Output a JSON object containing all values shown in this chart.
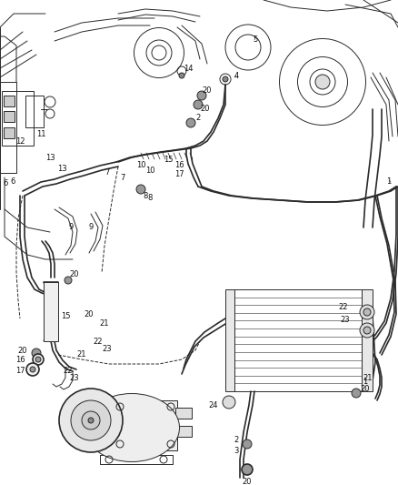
{
  "bg_color": "#ffffff",
  "line_color": "#2a2a2a",
  "fig_width": 4.38,
  "fig_height": 5.33,
  "dpi": 100
}
